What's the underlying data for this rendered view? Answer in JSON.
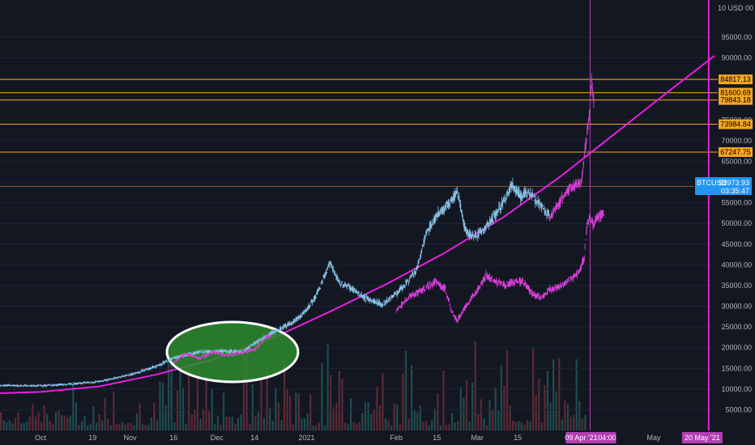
{
  "chart_data": {
    "type": "candlestick",
    "symbol_tag": "BTCUSD",
    "price_tag": "58973.93",
    "countdown_tag": "03:35:47",
    "top_price_tick": "10 USD 00",
    "y_ticks": [
      {
        "label": "95000.00",
        "value": 95000
      },
      {
        "label": "90000.00",
        "value": 90000
      },
      {
        "label": "85000.00",
        "value": 85000
      },
      {
        "label": "80000.00",
        "value": 80000
      },
      {
        "label": "75000.00",
        "value": 75000
      },
      {
        "label": "70000.00",
        "value": 70000
      },
      {
        "label": "65000.00",
        "value": 65000
      },
      {
        "label": "60000.00",
        "value": 60000
      },
      {
        "label": "55000.00",
        "value": 55000
      },
      {
        "label": "50000.00",
        "value": 50000
      },
      {
        "label": "45000.00",
        "value": 45000
      },
      {
        "label": "40000.00",
        "value": 40000
      },
      {
        "label": "35000.00",
        "value": 35000
      },
      {
        "label": "30000.00",
        "value": 30000
      },
      {
        "label": "25000.00",
        "value": 25000
      },
      {
        "label": "20000.00",
        "value": 20000
      },
      {
        "label": "15000.00",
        "value": 15000
      },
      {
        "label": "10000.00",
        "value": 10000
      },
      {
        "label": "5000.00",
        "value": 5000
      }
    ],
    "ylim": [
      0,
      104000
    ],
    "x_ticks": [
      {
        "label": "Oct",
        "day": 0
      },
      {
        "label": "19",
        "day": 18
      },
      {
        "label": "Nov",
        "day": 31
      },
      {
        "label": "16",
        "day": 46
      },
      {
        "label": "Dec",
        "day": 61
      },
      {
        "label": "14",
        "day": 74
      },
      {
        "label": "2021",
        "day": 92
      },
      {
        "label": "Feb",
        "day": 123
      },
      {
        "label": "15",
        "day": 137
      },
      {
        "label": "Mar",
        "day": 151
      },
      {
        "label": "15",
        "day": 165
      },
      {
        "label": "May",
        "day": 212
      }
    ],
    "xlim_days": [
      -14,
      233
    ],
    "x_reference_date": "Oct 1 2020",
    "cursor_tag": {
      "label": "09 Apr '21",
      "day": 190
    },
    "cursor_time_tag": "04:00",
    "end_tag": {
      "label": "20 May '21",
      "day": 231
    },
    "levels": [
      {
        "label": "84817.13",
        "value": 84817.13
      },
      {
        "label": "81600.69",
        "value": 81600.69
      },
      {
        "label": "79843.18",
        "value": 79843.18
      },
      {
        "label": "73984.84",
        "value": 73984.84
      },
      {
        "label": "67247.75",
        "value": 67247.75
      }
    ],
    "current_price": 58973.93,
    "price_path_blue": [
      [
        -14,
        10900
      ],
      [
        0,
        10800
      ],
      [
        10,
        11200
      ],
      [
        20,
        11800
      ],
      [
        31,
        13500
      ],
      [
        40,
        15500
      ],
      [
        46,
        17500
      ],
      [
        55,
        19000
      ],
      [
        61,
        19200
      ],
      [
        70,
        19000
      ],
      [
        74,
        21000
      ],
      [
        80,
        23500
      ],
      [
        88,
        26500
      ],
      [
        92,
        29000
      ],
      [
        96,
        33500
      ],
      [
        100,
        40500
      ],
      [
        103,
        36000
      ],
      [
        107,
        34500
      ],
      [
        112,
        32000
      ],
      [
        118,
        30500
      ],
      [
        123,
        33000
      ],
      [
        130,
        38500
      ],
      [
        133,
        47000
      ],
      [
        137,
        52000
      ],
      [
        142,
        55000
      ],
      [
        144,
        58000
      ],
      [
        147,
        48000
      ],
      [
        150,
        46500
      ],
      [
        155,
        50000
      ],
      [
        160,
        55000
      ],
      [
        163,
        59500
      ],
      [
        166,
        56500
      ],
      [
        169,
        57500
      ],
      [
        173,
        54000
      ],
      [
        176,
        52000
      ]
    ],
    "price_path_magenta_upper": [
      [
        176,
        51000
      ],
      [
        180,
        56000
      ],
      [
        183,
        58500
      ],
      [
        187,
        60000
      ],
      [
        188,
        66000
      ],
      [
        189,
        72000
      ],
      [
        190,
        78000
      ],
      [
        190.5,
        84800
      ],
      [
        191,
        80000
      ],
      [
        191.5,
        78500
      ]
    ],
    "price_path_magenta_lower": [
      [
        46,
        16500
      ],
      [
        50,
        18500
      ],
      [
        55,
        17500
      ],
      [
        60,
        19000
      ],
      [
        65,
        18000
      ],
      [
        70,
        19000
      ],
      [
        74,
        19500
      ],
      [
        78,
        22500
      ],
      [
        80,
        23000
      ],
      [
        123,
        29000
      ],
      [
        127,
        32000
      ],
      [
        132,
        34000
      ],
      [
        137,
        36000
      ],
      [
        140,
        34000
      ],
      [
        142,
        29000
      ],
      [
        144,
        26500
      ],
      [
        148,
        31000
      ],
      [
        151,
        34000
      ],
      [
        154,
        37500
      ],
      [
        157,
        36000
      ],
      [
        161,
        35000
      ],
      [
        164,
        36000
      ],
      [
        167,
        36000
      ],
      [
        170,
        33000
      ],
      [
        173,
        32000
      ],
      [
        176,
        34000
      ],
      [
        180,
        35000
      ],
      [
        186,
        38000
      ],
      [
        188,
        42000
      ],
      [
        189,
        50000
      ],
      [
        190,
        51500
      ],
      [
        191,
        50000
      ],
      [
        193,
        51500
      ],
      [
        195,
        53000
      ]
    ],
    "curve_path": [
      [
        -14,
        9000
      ],
      [
        0,
        9300
      ],
      [
        20,
        10600
      ],
      [
        40,
        13500
      ],
      [
        60,
        17200
      ],
      [
        80,
        22200
      ],
      [
        100,
        28700
      ],
      [
        120,
        35500
      ],
      [
        140,
        43000
      ],
      [
        160,
        51500
      ],
      [
        180,
        61500
      ],
      [
        200,
        72500
      ],
      [
        220,
        83500
      ],
      [
        233,
        90500
      ]
    ],
    "volume_days": 245,
    "colors": {
      "background": "#131722",
      "grid": "#1f2330",
      "candle_up": "#89c4e8",
      "candle_down": "#7aa8cc",
      "overlay": "#e040e0",
      "level": "#f5a623",
      "curve": "#e91ee0",
      "ellipse_fill": "#2e8b2e",
      "ellipse_stroke": "#ffffff",
      "tag_blue": "#2196f3",
      "cursor": "#b33fb3",
      "vol_up": "#1f4d4d",
      "vol_down": "#5c2a35"
    }
  }
}
